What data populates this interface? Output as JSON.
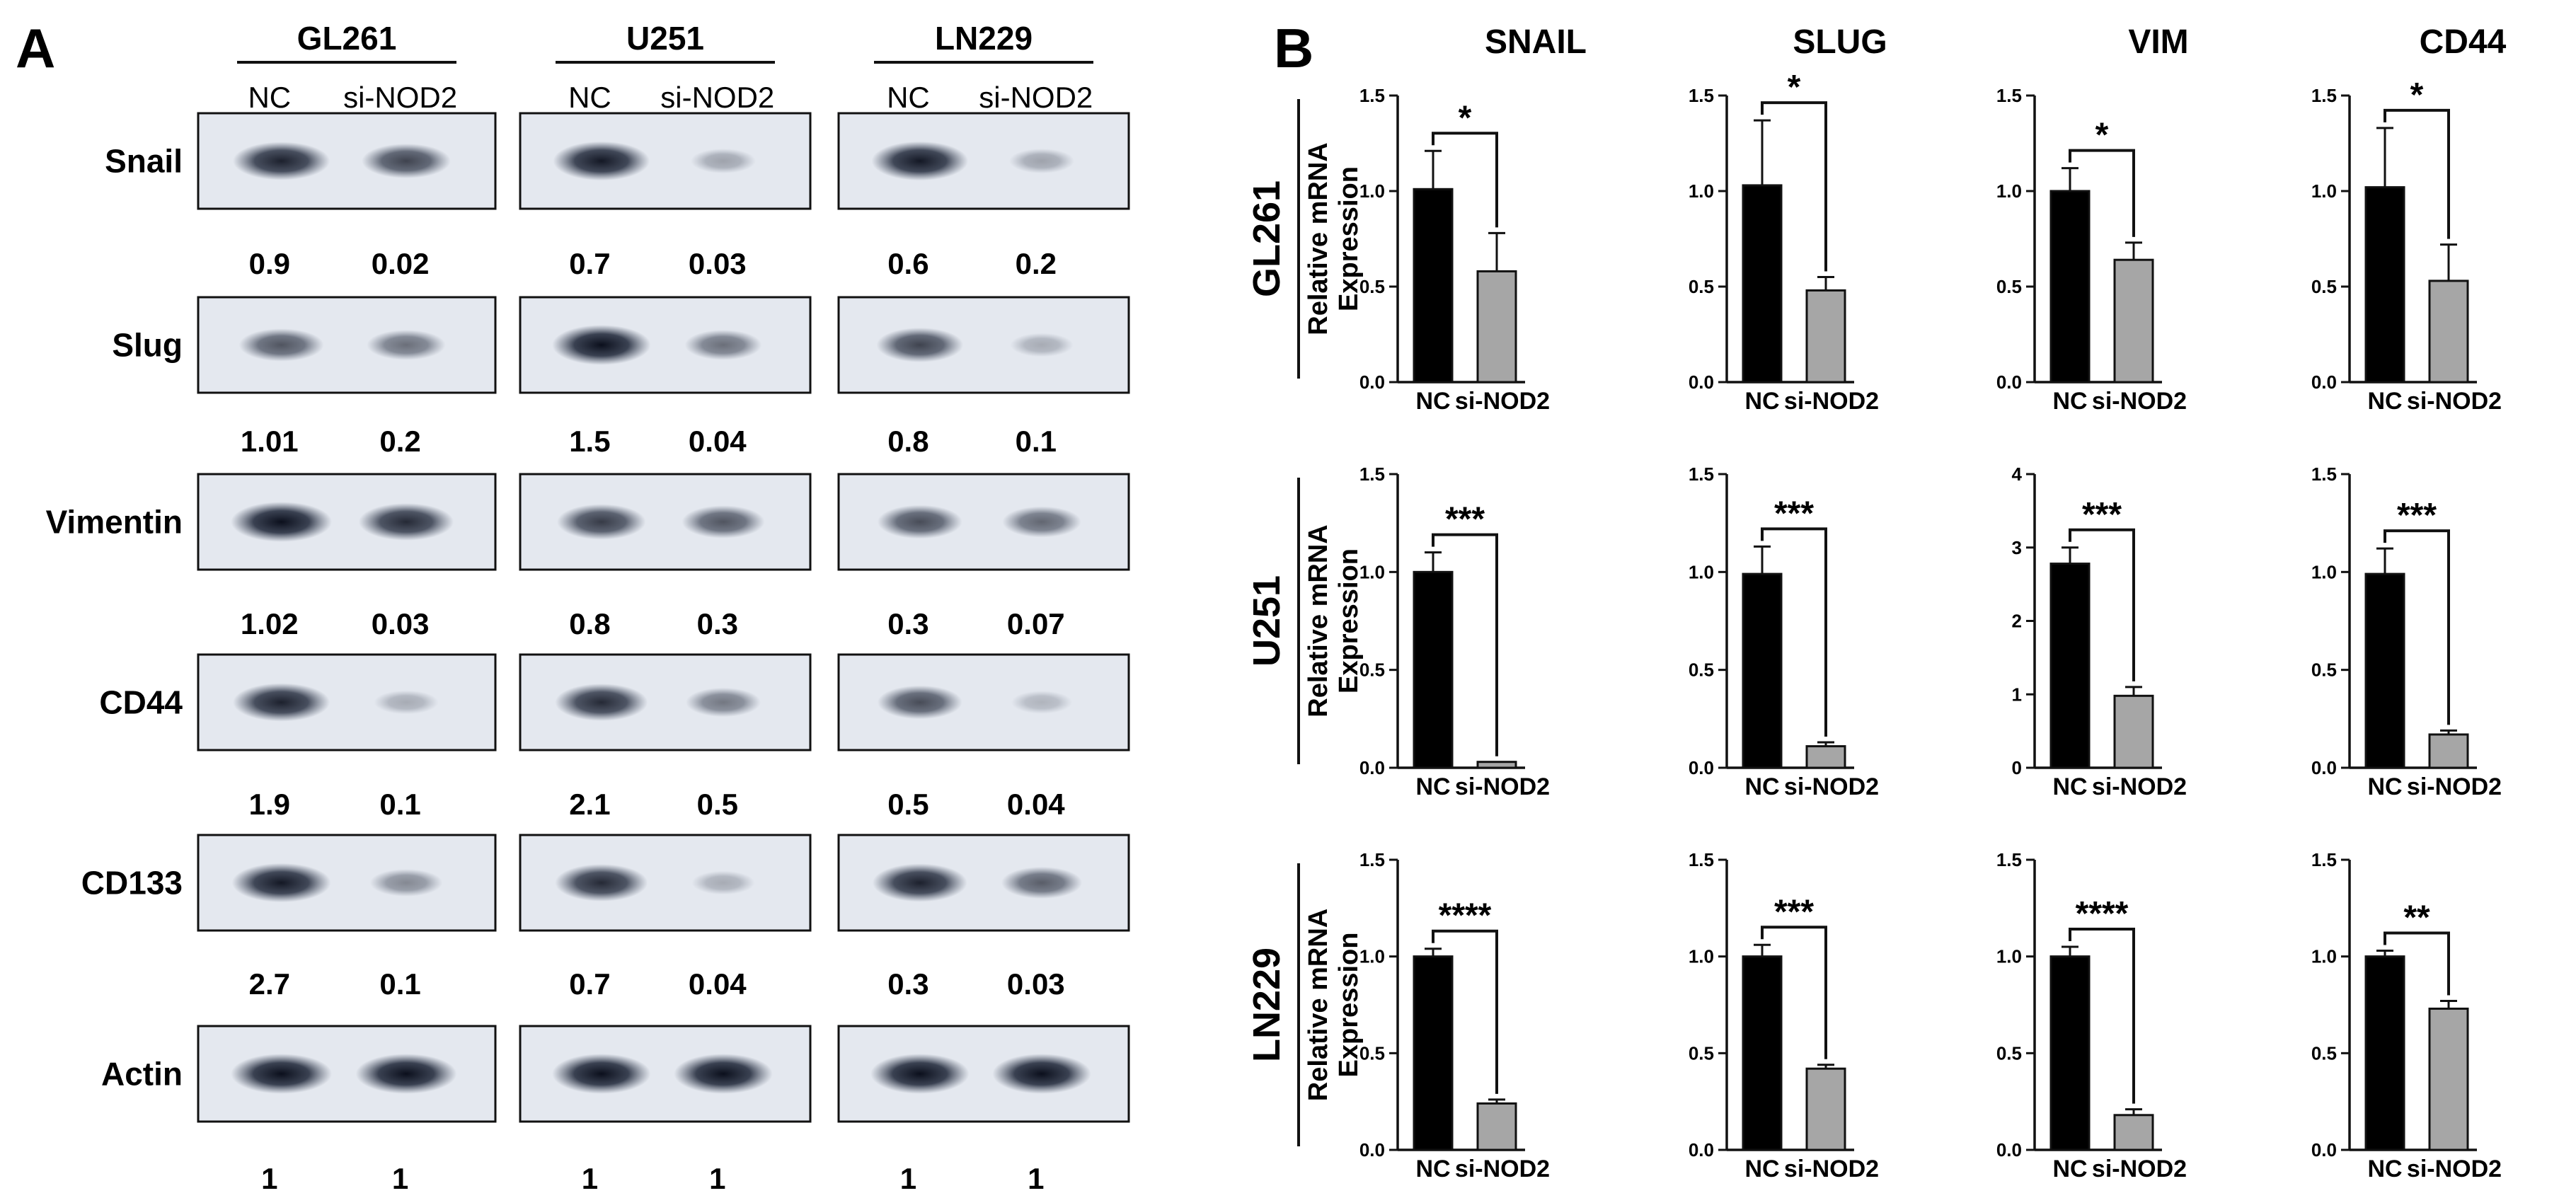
{
  "figure": {
    "panel_a": {
      "label": "A",
      "cell_lines": [
        "GL261",
        "U251",
        "LN229"
      ],
      "lanes": [
        "NC",
        "si-NOD2"
      ],
      "proteins": [
        "Snail",
        "Slug",
        "Vimentin",
        "CD44",
        "CD133",
        "Actin"
      ],
      "quant": [
        [
          [
            "0.9",
            "0.02"
          ],
          [
            "0.7",
            "0.03"
          ],
          [
            "0.6",
            "0.2"
          ]
        ],
        [
          [
            "1.01",
            "0.2"
          ],
          [
            "1.5",
            "0.04"
          ],
          [
            "0.8",
            "0.1"
          ]
        ],
        [
          [
            "1.02",
            "0.03"
          ],
          [
            "0.8",
            "0.3"
          ],
          [
            "0.3",
            "0.07"
          ]
        ],
        [
          [
            "1.9",
            "0.1"
          ],
          [
            "2.1",
            "0.5"
          ],
          [
            "0.5",
            "0.04"
          ]
        ],
        [
          [
            "2.7",
            "0.1"
          ],
          [
            "0.7",
            "0.04"
          ],
          [
            "0.3",
            "0.03"
          ]
        ],
        [
          [
            "1",
            "1"
          ],
          [
            "1",
            "1"
          ],
          [
            "1",
            "1"
          ]
        ]
      ],
      "band_intensity": [
        [
          [
            0.9,
            0.7
          ],
          [
            0.95,
            0.15
          ],
          [
            0.95,
            0.15
          ]
        ],
        [
          [
            0.6,
            0.45
          ],
          [
            1.0,
            0.45
          ],
          [
            0.7,
            0.1
          ]
        ],
        [
          [
            1.0,
            0.85
          ],
          [
            0.75,
            0.6
          ],
          [
            0.65,
            0.5
          ]
        ],
        [
          [
            0.9,
            0.1
          ],
          [
            0.85,
            0.4
          ],
          [
            0.65,
            0.05
          ]
        ],
        [
          [
            0.95,
            0.3
          ],
          [
            0.85,
            0.1
          ],
          [
            0.9,
            0.55
          ]
        ],
        [
          [
            1.0,
            1.0
          ],
          [
            1.0,
            1.0
          ],
          [
            1.0,
            1.0
          ]
        ]
      ]
    },
    "panel_b": {
      "label": "B",
      "genes": [
        "SNAIL",
        "SLUG",
        "VIM",
        "CD44"
      ],
      "cell_lines": [
        "GL261",
        "U251",
        "LN229"
      ],
      "ylabel_line1": "Relative mRNA",
      "ylabel_line2": "Expression",
      "colors": {
        "nc": "#000000",
        "si": "#a6a6a6"
      }
    }
  },
  "chart_data": [
    {
      "type": "bar",
      "row": "GL261",
      "title": "SNAIL",
      "categories": [
        "NC",
        "si-NOD2"
      ],
      "values": [
        1.01,
        0.58
      ],
      "errors": [
        0.2,
        0.2
      ],
      "ylim": [
        0,
        1.5
      ],
      "yticks": [
        "0.0",
        "0.5",
        "1.0",
        "1.5"
      ],
      "significance": "*",
      "xlabel": "",
      "ylabel": "Relative mRNA Expression"
    },
    {
      "type": "bar",
      "row": "GL261",
      "title": "SLUG",
      "categories": [
        "NC",
        "si-NOD2"
      ],
      "values": [
        1.03,
        0.48
      ],
      "errors": [
        0.34,
        0.07
      ],
      "ylim": [
        0,
        1.5
      ],
      "yticks": [
        "0.0",
        "0.5",
        "1.0",
        "1.5"
      ],
      "significance": "*",
      "xlabel": "",
      "ylabel": ""
    },
    {
      "type": "bar",
      "row": "GL261",
      "title": "VIM",
      "categories": [
        "NC",
        "si-NOD2"
      ],
      "values": [
        1.0,
        0.64
      ],
      "errors": [
        0.12,
        0.09
      ],
      "ylim": [
        0,
        1.5
      ],
      "yticks": [
        "0.0",
        "0.5",
        "1.0",
        "1.5"
      ],
      "significance": "*",
      "xlabel": "",
      "ylabel": ""
    },
    {
      "type": "bar",
      "row": "GL261",
      "title": "CD44",
      "categories": [
        "NC",
        "si-NOD2"
      ],
      "values": [
        1.02,
        0.53
      ],
      "errors": [
        0.31,
        0.19
      ],
      "ylim": [
        0,
        1.5
      ],
      "yticks": [
        "0.0",
        "0.5",
        "1.0",
        "1.5"
      ],
      "significance": "*",
      "xlabel": "",
      "ylabel": ""
    },
    {
      "type": "bar",
      "row": "U251",
      "title": "",
      "categories": [
        "NC",
        "si-NOD2"
      ],
      "values": [
        1.0,
        0.03
      ],
      "errors": [
        0.1,
        0.0
      ],
      "ylim": [
        0,
        1.5
      ],
      "yticks": [
        "0.0",
        "0.5",
        "1.0",
        "1.5"
      ],
      "significance": "***",
      "xlabel": "",
      "ylabel": "Relative mRNA Expression"
    },
    {
      "type": "bar",
      "row": "U251",
      "title": "",
      "categories": [
        "NC",
        "si-NOD2"
      ],
      "values": [
        0.99,
        0.11
      ],
      "errors": [
        0.14,
        0.02
      ],
      "ylim": [
        0,
        1.5
      ],
      "yticks": [
        "0.0",
        "0.5",
        "1.0",
        "1.5"
      ],
      "significance": "***",
      "xlabel": "",
      "ylabel": ""
    },
    {
      "type": "bar",
      "row": "U251",
      "title": "",
      "categories": [
        "NC",
        "si-NOD2"
      ],
      "values": [
        2.78,
        0.98
      ],
      "errors": [
        0.22,
        0.12
      ],
      "ylim": [
        0,
        4
      ],
      "yticks": [
        "0",
        "1",
        "2",
        "3",
        "4"
      ],
      "significance": "***",
      "xlabel": "",
      "ylabel": ""
    },
    {
      "type": "bar",
      "row": "U251",
      "title": "",
      "categories": [
        "NC",
        "si-NOD2"
      ],
      "values": [
        0.99,
        0.17
      ],
      "errors": [
        0.13,
        0.02
      ],
      "ylim": [
        0,
        1.5
      ],
      "yticks": [
        "0.0",
        "0.5",
        "1.0",
        "1.5"
      ],
      "significance": "***",
      "xlabel": "",
      "ylabel": ""
    },
    {
      "type": "bar",
      "row": "LN229",
      "title": "",
      "categories": [
        "NC",
        "si-NOD2"
      ],
      "values": [
        1.0,
        0.24
      ],
      "errors": [
        0.04,
        0.02
      ],
      "ylim": [
        0,
        1.5
      ],
      "yticks": [
        "0.0",
        "0.5",
        "1.0",
        "1.5"
      ],
      "significance": "****",
      "xlabel": "",
      "ylabel": "Relative mRNA Expression"
    },
    {
      "type": "bar",
      "row": "LN229",
      "title": "",
      "categories": [
        "NC",
        "si-NOD2"
      ],
      "values": [
        1.0,
        0.42
      ],
      "errors": [
        0.06,
        0.02
      ],
      "ylim": [
        0,
        1.5
      ],
      "yticks": [
        "0.0",
        "0.5",
        "1.0",
        "1.5"
      ],
      "significance": "***",
      "xlabel": "",
      "ylabel": ""
    },
    {
      "type": "bar",
      "row": "LN229",
      "title": "",
      "categories": [
        "NC",
        "si-NOD2"
      ],
      "values": [
        1.0,
        0.18
      ],
      "errors": [
        0.05,
        0.03
      ],
      "ylim": [
        0,
        1.5
      ],
      "yticks": [
        "0.0",
        "0.5",
        "1.0",
        "1.5"
      ],
      "significance": "****",
      "xlabel": "",
      "ylabel": ""
    },
    {
      "type": "bar",
      "row": "LN229",
      "title": "",
      "categories": [
        "NC",
        "si-NOD2"
      ],
      "values": [
        1.0,
        0.73
      ],
      "errors": [
        0.03,
        0.04
      ],
      "ylim": [
        0,
        1.5
      ],
      "yticks": [
        "0.0",
        "0.5",
        "1.0",
        "1.5"
      ],
      "significance": "**",
      "xlabel": "",
      "ylabel": ""
    }
  ]
}
